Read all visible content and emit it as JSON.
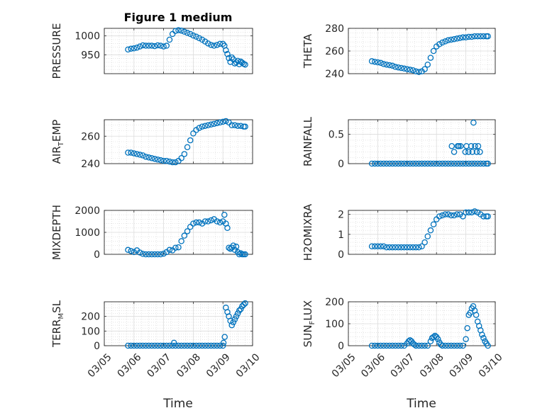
{
  "figure": {
    "title": "Figure 1 medium",
    "xlabel": "Time",
    "x_ticks": [
      "03/05",
      "03/06",
      "03/07",
      "03/08",
      "03/09",
      "03/10"
    ],
    "marker_color": "#0072BD"
  },
  "chart_data": [
    {
      "type": "scatter",
      "ylabel": "PRESSURE",
      "xlim": [
        0,
        5
      ],
      "ylim": [
        900,
        1020
      ],
      "yticks": [
        950,
        1000
      ],
      "grid": true,
      "x": [
        0.8,
        0.9,
        1.0,
        1.1,
        1.2,
        1.3,
        1.4,
        1.5,
        1.6,
        1.7,
        1.8,
        1.9,
        2.0,
        2.1,
        2.2,
        2.3,
        2.4,
        2.5,
        2.6,
        2.7,
        2.8,
        2.9,
        3.0,
        3.1,
        3.2,
        3.3,
        3.4,
        3.5,
        3.6,
        3.7,
        3.8,
        3.9,
        4.0,
        4.05,
        4.1,
        4.15,
        4.2,
        4.25,
        4.3,
        4.35,
        4.4,
        4.45,
        4.5,
        4.55,
        4.6,
        4.65,
        4.7,
        4.75
      ],
      "y": [
        964,
        966,
        967,
        969,
        972,
        975,
        974,
        974,
        974,
        973,
        975,
        974,
        972,
        974,
        990,
        1005,
        1013,
        1015,
        1014,
        1011,
        1008,
        1005,
        1001,
        998,
        994,
        990,
        985,
        980,
        976,
        974,
        976,
        979,
        979,
        974,
        962,
        952,
        941,
        931,
        943,
        938,
        927,
        930,
        934,
        925,
        932,
        929,
        926,
        924
      ]
    },
    {
      "type": "scatter",
      "ylabel": "THETA",
      "xlim": [
        0,
        5
      ],
      "ylim": [
        240,
        280
      ],
      "yticks": [
        240,
        260,
        280
      ],
      "grid": true,
      "x": [
        0.8,
        0.9,
        1.0,
        1.1,
        1.2,
        1.3,
        1.4,
        1.5,
        1.6,
        1.7,
        1.8,
        1.9,
        2.0,
        2.1,
        2.2,
        2.3,
        2.4,
        2.5,
        2.6,
        2.7,
        2.8,
        2.9,
        3.0,
        3.1,
        3.2,
        3.3,
        3.4,
        3.5,
        3.6,
        3.7,
        3.8,
        3.9,
        4.0,
        4.1,
        4.2,
        4.3,
        4.4,
        4.5,
        4.6,
        4.7,
        4.75
      ],
      "y": [
        251,
        250.5,
        250,
        249.5,
        248.5,
        248,
        247.5,
        247,
        246,
        245.5,
        245,
        244.5,
        244,
        243.5,
        243,
        242,
        241.5,
        242,
        244,
        248,
        254,
        260,
        264,
        266,
        267.5,
        268.5,
        269.5,
        270,
        270.5,
        271,
        271.5,
        272,
        272,
        272.5,
        272.5,
        273,
        273,
        273,
        273,
        273,
        273
      ]
    },
    {
      "type": "scatter",
      "ylabel": "AIR_TEMP",
      "ylabel_main": "AIR",
      "ylabel_sub": "T",
      "ylabel_rest": "EMP",
      "xlim": [
        0,
        5
      ],
      "ylim": [
        240,
        272
      ],
      "yticks": [
        240,
        260
      ],
      "grid": true,
      "x": [
        0.8,
        0.9,
        1.0,
        1.1,
        1.2,
        1.3,
        1.4,
        1.5,
        1.6,
        1.7,
        1.8,
        1.9,
        2.0,
        2.1,
        2.2,
        2.3,
        2.4,
        2.5,
        2.6,
        2.7,
        2.8,
        2.9,
        3.0,
        3.1,
        3.2,
        3.3,
        3.4,
        3.5,
        3.6,
        3.7,
        3.8,
        3.9,
        4.0,
        4.1,
        4.2,
        4.3,
        4.4,
        4.5,
        4.6,
        4.7,
        4.75
      ],
      "y": [
        248,
        248,
        247.5,
        247,
        246.5,
        246,
        245,
        244.5,
        244,
        243.5,
        243,
        242.5,
        242,
        242,
        241.5,
        241,
        241,
        242,
        244,
        247,
        252,
        257,
        262,
        264.5,
        266,
        267,
        267.5,
        268,
        268.5,
        269,
        269.5,
        270,
        270.5,
        271,
        270,
        268,
        268,
        267.5,
        267.5,
        267,
        267
      ]
    },
    {
      "type": "scatter",
      "ylabel": "RAINFALL",
      "xlim": [
        0,
        5
      ],
      "ylim": [
        0,
        0.75
      ],
      "yticks": [
        0,
        0.5
      ],
      "grid": true,
      "x": [
        0.8,
        0.9,
        1.0,
        1.1,
        1.2,
        1.3,
        1.4,
        1.5,
        1.6,
        1.7,
        1.8,
        1.9,
        2.0,
        2.1,
        2.2,
        2.3,
        2.4,
        2.5,
        2.6,
        2.7,
        2.8,
        2.9,
        3.0,
        3.1,
        3.2,
        3.3,
        3.4,
        3.5,
        3.6,
        3.7,
        3.8,
        3.9,
        4.0,
        4.1,
        4.2,
        4.3,
        4.4,
        4.5,
        4.6,
        4.7,
        4.75,
        3.52,
        3.6,
        3.72,
        3.76,
        3.82,
        3.98,
        4.02,
        4.09,
        4.18,
        4.22,
        4.26,
        4.31,
        4.37,
        4.42,
        4.48
      ],
      "y": [
        0,
        0,
        0,
        0,
        0,
        0,
        0,
        0,
        0,
        0,
        0,
        0,
        0,
        0,
        0,
        0,
        0,
        0,
        0,
        0,
        0,
        0,
        0,
        0,
        0,
        0,
        0,
        0,
        0,
        0,
        0,
        0,
        0,
        0,
        0,
        0,
        0,
        0,
        0,
        0,
        0,
        0.3,
        0.2,
        0.3,
        0.3,
        0.3,
        0.2,
        0.3,
        0.2,
        0.3,
        0.2,
        0.7,
        0.3,
        0.2,
        0.3,
        0.2
      ]
    },
    {
      "type": "scatter",
      "ylabel": "MIXDEPTH",
      "xlim": [
        0,
        5
      ],
      "ylim": [
        0,
        2000
      ],
      "yticks": [
        0,
        1000,
        2000
      ],
      "grid": true,
      "x": [
        0.8,
        0.9,
        1.0,
        1.1,
        1.2,
        1.3,
        1.4,
        1.5,
        1.6,
        1.7,
        1.8,
        1.9,
        2.0,
        2.1,
        2.2,
        2.3,
        2.4,
        2.5,
        2.6,
        2.7,
        2.8,
        2.9,
        3.0,
        3.1,
        3.2,
        3.3,
        3.4,
        3.5,
        3.6,
        3.7,
        3.8,
        3.9,
        4.0,
        4.05,
        4.1,
        4.15,
        4.2,
        4.25,
        4.3,
        4.35,
        4.4,
        4.45,
        4.5,
        4.55,
        4.6,
        4.65,
        4.7,
        4.75
      ],
      "y": [
        200,
        150,
        100,
        180,
        80,
        20,
        0,
        0,
        0,
        0,
        0,
        0,
        30,
        100,
        200,
        180,
        300,
        320,
        600,
        850,
        1050,
        1250,
        1400,
        1450,
        1450,
        1400,
        1500,
        1500,
        1550,
        1600,
        1500,
        1450,
        1500,
        1800,
        1400,
        1200,
        300,
        250,
        300,
        400,
        200,
        350,
        100,
        0,
        50,
        0,
        0,
        0
      ]
    },
    {
      "type": "scatter",
      "ylabel": "H2OMIXRA",
      "xlim": [
        0,
        5
      ],
      "ylim": [
        0,
        2.2
      ],
      "yticks": [
        0,
        1,
        2
      ],
      "grid": true,
      "x": [
        0.8,
        0.9,
        1.0,
        1.1,
        1.2,
        1.3,
        1.4,
        1.5,
        1.6,
        1.7,
        1.8,
        1.9,
        2.0,
        2.1,
        2.2,
        2.3,
        2.4,
        2.5,
        2.6,
        2.7,
        2.8,
        2.9,
        3.0,
        3.1,
        3.2,
        3.3,
        3.4,
        3.5,
        3.6,
        3.7,
        3.8,
        3.9,
        4.0,
        4.1,
        4.2,
        4.3,
        4.4,
        4.5,
        4.6,
        4.7,
        4.75
      ],
      "y": [
        0.4,
        0.4,
        0.4,
        0.4,
        0.4,
        0.35,
        0.35,
        0.35,
        0.35,
        0.35,
        0.35,
        0.35,
        0.35,
        0.35,
        0.35,
        0.35,
        0.35,
        0.4,
        0.6,
        0.9,
        1.2,
        1.5,
        1.75,
        1.9,
        1.95,
        2.0,
        2.0,
        1.95,
        1.95,
        2.0,
        2.0,
        1.9,
        2.1,
        2.1,
        2.1,
        2.15,
        2.1,
        2.0,
        1.9,
        1.9,
        1.9
      ]
    },
    {
      "type": "scatter",
      "ylabel": "TERR_MSL",
      "ylabel_main": "TERR",
      "ylabel_sub": "M",
      "ylabel_rest": "SL",
      "xlim": [
        0,
        5
      ],
      "ylim": [
        0,
        300
      ],
      "yticks": [
        0,
        100,
        200
      ],
      "grid": true,
      "x": [
        0.8,
        0.9,
        1.0,
        1.1,
        1.2,
        1.3,
        1.4,
        1.5,
        1.6,
        1.7,
        1.8,
        1.9,
        2.0,
        2.1,
        2.2,
        2.3,
        2.4,
        2.5,
        2.6,
        2.7,
        2.8,
        2.9,
        3.0,
        3.1,
        3.2,
        3.3,
        3.4,
        3.5,
        3.6,
        3.7,
        3.8,
        3.9,
        4.0,
        4.02,
        4.06,
        4.1,
        4.15,
        4.2,
        4.25,
        4.3,
        4.35,
        4.4,
        4.45,
        4.5,
        4.55,
        4.6,
        4.65,
        4.7,
        4.75,
        2.35
      ],
      "y": [
        0,
        0,
        0,
        0,
        0,
        0,
        0,
        0,
        0,
        0,
        0,
        0,
        0,
        0,
        0,
        0,
        0,
        0,
        0,
        0,
        0,
        0,
        0,
        0,
        0,
        0,
        0,
        0,
        0,
        0,
        0,
        0,
        0,
        20,
        60,
        260,
        230,
        200,
        170,
        140,
        160,
        180,
        200,
        220,
        240,
        250,
        270,
        280,
        290,
        20
      ]
    },
    {
      "type": "scatter",
      "ylabel": "SUN_FLUX",
      "ylabel_main": "SUN",
      "ylabel_sub": "F",
      "ylabel_rest": "LUX",
      "xlim": [
        0,
        5
      ],
      "ylim": [
        0,
        200
      ],
      "yticks": [
        0,
        100,
        200
      ],
      "grid": true,
      "x": [
        0.8,
        0.9,
        1.0,
        1.1,
        1.2,
        1.3,
        1.4,
        1.5,
        1.6,
        1.7,
        1.8,
        1.9,
        2.0,
        2.05,
        2.1,
        2.15,
        2.2,
        2.25,
        2.3,
        2.4,
        2.5,
        2.6,
        2.7,
        2.8,
        2.85,
        2.9,
        2.95,
        3.0,
        3.05,
        3.1,
        3.15,
        3.2,
        3.3,
        3.4,
        3.5,
        3.6,
        3.7,
        3.8,
        3.9,
        4.0,
        4.05,
        4.1,
        4.15,
        4.2,
        4.25,
        4.3,
        4.35,
        4.4,
        4.45,
        4.5,
        4.55,
        4.6,
        4.65,
        4.7,
        4.75
      ],
      "y": [
        0,
        0,
        0,
        0,
        0,
        0,
        0,
        0,
        0,
        0,
        0,
        0,
        10,
        20,
        25,
        20,
        10,
        5,
        0,
        0,
        0,
        0,
        0,
        20,
        35,
        40,
        45,
        40,
        30,
        15,
        5,
        0,
        0,
        0,
        0,
        0,
        0,
        0,
        0,
        30,
        80,
        140,
        150,
        170,
        180,
        160,
        140,
        110,
        90,
        70,
        50,
        35,
        20,
        10,
        0
      ]
    }
  ]
}
